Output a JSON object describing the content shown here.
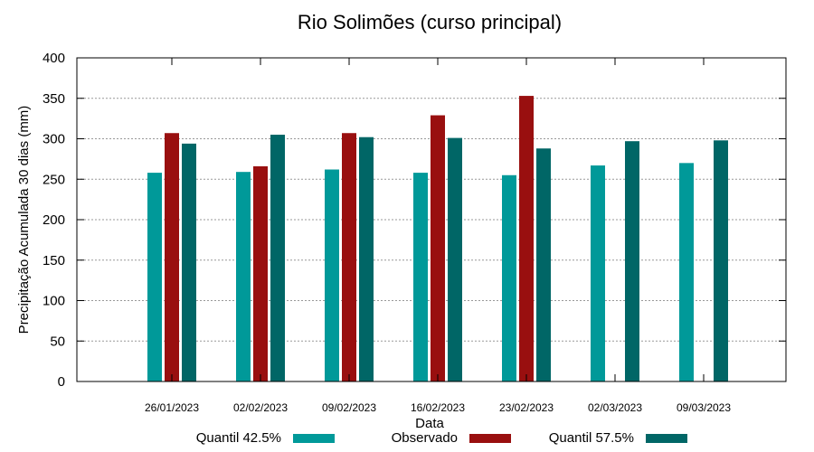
{
  "chart_data": {
    "type": "bar",
    "title": "Rio Solimões (curso principal)",
    "xlabel": "Data",
    "ylabel": "Precipitação Acumulada 30 dias (mm)",
    "ylim": [
      0,
      400
    ],
    "yticks": [
      0,
      50,
      100,
      150,
      200,
      250,
      300,
      350,
      400
    ],
    "grid": true,
    "legend_position": "bottom",
    "categories": [
      "26/01/2023",
      "02/02/2023",
      "09/02/2023",
      "16/02/2023",
      "23/02/2023",
      "02/03/2023",
      "09/03/2023"
    ],
    "series": [
      {
        "name": "Quantil 42.5%",
        "color": "#009999",
        "values": [
          258,
          259,
          262,
          258,
          255,
          267,
          270
        ]
      },
      {
        "name": "Observado",
        "color": "#990f0f",
        "values": [
          307,
          266,
          307,
          329,
          353,
          null,
          null
        ]
      },
      {
        "name": "Quantil 57.5%",
        "color": "#006666",
        "values": [
          294,
          305,
          302,
          301,
          288,
          297,
          298
        ]
      }
    ]
  }
}
